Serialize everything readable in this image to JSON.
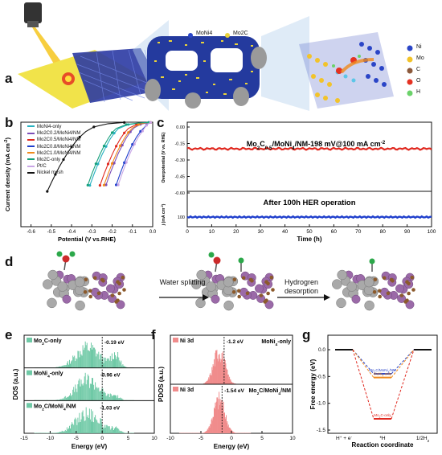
{
  "panel_labels": {
    "a": "a",
    "b": "b",
    "c": "c",
    "d": "d",
    "e": "e",
    "f": "f",
    "g": "g"
  },
  "colors": {
    "nimo_blue": "#1f2f9e",
    "mo2c_yellow": "#e9d23a",
    "dos_green": "#6fc9a6",
    "pdos_red": "#f08c8c",
    "nickel_grey": "#9a9a9a"
  },
  "panel_a": {
    "legend": [
      "MoNi4",
      "Mo2C"
    ],
    "atom_legend": [
      "Ni",
      "Mo",
      "C",
      "O",
      "H"
    ]
  },
  "panel_b": {
    "chart_data": {
      "type": "line",
      "xlabel": "Potential (V vs.RHE)",
      "ylabel": "Current density (mA cm-2)",
      "xlim": [
        -0.65,
        0.0
      ],
      "ylim": [
        -400,
        0
      ],
      "xticks": [
        "-0.6",
        "-0.5",
        "-0.4",
        "-0.3",
        "-0.2",
        "-0.1",
        "0.0"
      ],
      "legend_position": "top-left",
      "series": [
        {
          "name": "MoNi4-only",
          "color": "#27b1c0",
          "x": [
            -0.31,
            -0.29,
            -0.27,
            -0.25,
            -0.23,
            -0.21,
            -0.19,
            -0.17,
            -0.12,
            -0.06,
            -0.02
          ],
          "y": [
            -242,
            -200,
            -160,
            -125,
            -93,
            -65,
            -42,
            -25,
            -9,
            -3,
            -1
          ]
        },
        {
          "name": "Mo2C0.2/MoNi4/NM",
          "color": "#7d4fb8",
          "x": [
            -0.23,
            -0.21,
            -0.19,
            -0.17,
            -0.15,
            -0.13,
            -0.11,
            -0.09,
            -0.06,
            -0.03,
            -0.01
          ],
          "y": [
            -240,
            -196,
            -157,
            -120,
            -88,
            -60,
            -37,
            -21,
            -8,
            -3,
            -1
          ]
        },
        {
          "name": "Mo2C0.5/MoNi4/NM",
          "color": "#e0281f",
          "x": [
            -0.26,
            -0.24,
            -0.22,
            -0.2,
            -0.18,
            -0.16,
            -0.14,
            -0.12,
            -0.08,
            -0.04,
            -0.01
          ],
          "y": [
            -242,
            -199,
            -160,
            -124,
            -92,
            -64,
            -41,
            -24,
            -9,
            -3,
            -1
          ]
        },
        {
          "name": "Mo2C0.8/MoNi4/NM",
          "color": "#1f3fcc",
          "x": [
            -0.18,
            -0.16,
            -0.14,
            -0.12,
            -0.1,
            -0.08,
            -0.06,
            -0.04,
            -0.03,
            -0.02,
            -0.01
          ],
          "y": [
            -240,
            -196,
            -155,
            -118,
            -85,
            -57,
            -35,
            -19,
            -10,
            -5,
            -1
          ]
        },
        {
          "name": "Mo2C1.0/MoNi4/NM",
          "color": "#f08a1c",
          "x": [
            -0.24,
            -0.22,
            -0.2,
            -0.18,
            -0.16,
            -0.14,
            -0.12,
            -0.1,
            -0.07,
            -0.04,
            -0.01
          ],
          "y": [
            -241,
            -198,
            -158,
            -122,
            -90,
            -62,
            -39,
            -22,
            -9,
            -3,
            -1
          ]
        },
        {
          "name": "Mo2C-only",
          "color": "#16a07a",
          "x": [
            -0.32,
            -0.3,
            -0.28,
            -0.26,
            -0.24,
            -0.22,
            -0.2,
            -0.18,
            -0.13,
            -0.07,
            -0.02
          ],
          "y": [
            -241,
            -198,
            -159,
            -123,
            -91,
            -63,
            -40,
            -24,
            -9,
            -3,
            -1
          ]
        },
        {
          "name": "Pt/C",
          "color": "#c9a6e6",
          "x": [
            -0.17,
            -0.15,
            -0.13,
            -0.11,
            -0.09,
            -0.07,
            -0.05,
            -0.04,
            -0.03,
            -0.02,
            -0.01
          ],
          "y": [
            -240,
            -195,
            -154,
            -117,
            -84,
            -56,
            -34,
            -22,
            -12,
            -5,
            -1
          ]
        },
        {
          "name": "Nickel mesh",
          "color": "#111111",
          "x": [
            -0.52,
            -0.5,
            -0.48,
            -0.46,
            -0.44,
            -0.42,
            -0.4,
            -0.38,
            -0.36,
            -0.33,
            -0.29,
            -0.22,
            -0.14
          ],
          "y": [
            -265,
            -232,
            -200,
            -170,
            -143,
            -118,
            -95,
            -75,
            -57,
            -36,
            -18,
            -6,
            -1
          ]
        }
      ]
    }
  },
  "panel_c": {
    "chart_data": {
      "type": "line",
      "xlabel": "Time (h)",
      "ylabel_top": "Overpotential (V vs. RHE)",
      "ylabel_bottom": "j (mA cm-2)",
      "xlim": [
        0,
        100
      ],
      "xticks": [
        "0",
        "10",
        "20",
        "30",
        "40",
        "50",
        "60",
        "70",
        "80",
        "90",
        "100"
      ],
      "yticks_top": [
        "0.00",
        "-0.15",
        "-0.30",
        "-0.45",
        "-0.60"
      ],
      "yticks_bottom": [
        "100"
      ],
      "annotation_top": "Mo2C0.5/MoNi4/NM-198 mV@100 mA cm-2",
      "annotation_mid": "After 100h HER operation",
      "series": [
        {
          "name": "overpotential",
          "color": "#e0281f",
          "x": [
            0,
            25,
            50,
            75,
            100
          ],
          "y": [
            -0.198,
            -0.198,
            -0.198,
            -0.198,
            -0.198
          ]
        },
        {
          "name": "current density",
          "color": "#1f3fcc",
          "x": [
            0,
            25,
            50,
            75,
            100
          ],
          "y": [
            100,
            100,
            100,
            100,
            100
          ]
        }
      ]
    }
  },
  "panel_d": {
    "steps": [
      "Water splitting",
      "Hydrogren desorption"
    ]
  },
  "panel_e": {
    "chart_data": {
      "type": "area",
      "xlabel": "Energy (eV)",
      "ylabel": "DOS (a.u.)",
      "xlim": [
        -15,
        10
      ],
      "xticks": [
        "-15",
        "-10",
        "-5",
        "0",
        "5",
        "10"
      ],
      "series": [
        {
          "name": "Mo2C-only",
          "fermi_marker": "-0.19 eV",
          "peak_ev": -0.19
        },
        {
          "name": "MoNi4-only",
          "fermi_marker": "-0.96 eV",
          "peak_ev": -0.96
        },
        {
          "name": "Mo2C/MoNi4/NM",
          "fermi_marker": "-1.03 eV",
          "peak_ev": -1.03
        }
      ]
    }
  },
  "panel_f": {
    "chart_data": {
      "type": "area",
      "xlabel": "Energy (eV)",
      "ylabel": "PDOS (a.u.)",
      "xlim": [
        -10,
        10
      ],
      "xticks": [
        "-10",
        "-5",
        "0",
        "5",
        "10"
      ],
      "series": [
        {
          "name": "MoNi4-only",
          "orbital": "Ni 3d",
          "fermi_marker": "-1.2 eV",
          "peak_ev": -1.2
        },
        {
          "name": "Mo2C/MoNi4/NM",
          "orbital": "Ni 3d",
          "fermi_marker": "-1.54 eV",
          "peak_ev": -1.54
        }
      ]
    }
  },
  "panel_g": {
    "chart_data": {
      "type": "line",
      "xlabel": "Reaction coordinate",
      "ylabel": "Free energy (eV)",
      "ylim": [
        -1.5,
        0.0
      ],
      "yticks": [
        "0.0",
        "-0.5",
        "-1.0",
        "-1.5"
      ],
      "xticks": [
        "H+ + e-",
        "*H",
        "1/2H2"
      ],
      "series": [
        {
          "name": "Mo2C/MoNi4/NM",
          "color": "#2a45c7",
          "y": [
            0.0,
            -0.45,
            0.0
          ]
        },
        {
          "name": "MoNi4-only",
          "color": "#f08a1c",
          "y": [
            0.0,
            -0.52,
            0.0
          ]
        },
        {
          "name": "Mo2C-only",
          "color": "#e0281f",
          "y": [
            0.0,
            -1.29,
            0.0
          ]
        }
      ]
    }
  }
}
